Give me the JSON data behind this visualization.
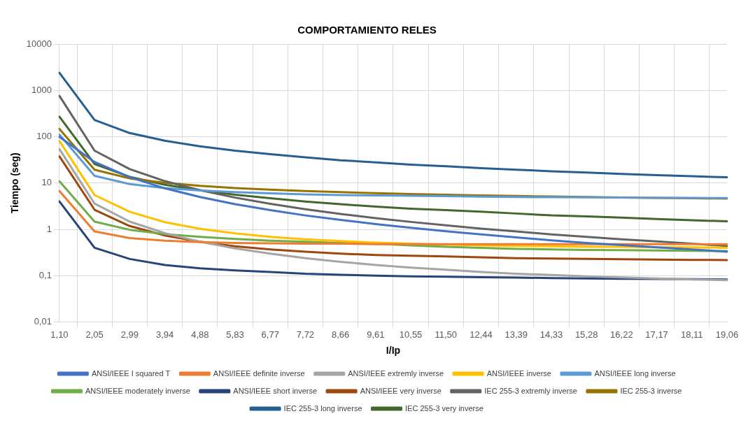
{
  "chart_data": {
    "type": "line",
    "title": "COMPORTAMIENTO RELES",
    "xlabel": "I/Ip",
    "ylabel": "Tiempo (seg)",
    "categories": [
      "1,10",
      "2,05",
      "2,99",
      "3,94",
      "4,88",
      "5,83",
      "6,77",
      "7,72",
      "8,66",
      "9,61",
      "10,55",
      "11,50",
      "12,44",
      "13,39",
      "14,33",
      "15,28",
      "16,22",
      "17,17",
      "18,11",
      "19,06"
    ],
    "log": "y",
    "ylim": [
      0.01,
      10000
    ],
    "yticks": [
      {
        "value": 0.01,
        "label": "0,01"
      },
      {
        "value": 0.1,
        "label": "0,1"
      },
      1,
      10,
      100,
      1000,
      10000
    ],
    "grid": true,
    "legend": "bottom",
    "marker": "none",
    "line_style": "solid",
    "series": [
      {
        "name": "ANSI/IEEE I squared T",
        "color": "#4472c4",
        "values": [
          99,
          28.5,
          13.4,
          7.7,
          5.0,
          3.5,
          2.6,
          2.0,
          1.6,
          1.3,
          1.08,
          0.91,
          0.78,
          0.67,
          0.58,
          0.51,
          0.46,
          0.41,
          0.37,
          0.33
        ]
      },
      {
        "name": "ANSI/IEEE definite inverse",
        "color": "#ed7d31",
        "values": [
          6.7,
          0.9,
          0.65,
          0.57,
          0.53,
          0.51,
          0.5,
          0.49,
          0.49,
          0.48,
          0.48,
          0.48,
          0.48,
          0.48,
          0.48,
          0.48,
          0.48,
          0.48,
          0.48,
          0.48
        ]
      },
      {
        "name": "ANSI/IEEE extremly inverse",
        "color": "#a5a5a5",
        "values": [
          54,
          3.6,
          1.47,
          0.83,
          0.54,
          0.39,
          0.3,
          0.24,
          0.2,
          0.17,
          0.15,
          0.135,
          0.12,
          0.11,
          0.104,
          0.097,
          0.092,
          0.087,
          0.083,
          0.08
        ]
      },
      {
        "name": "ANSI/IEEE inverse",
        "color": "#ffc000",
        "values": [
          81,
          5.5,
          2.4,
          1.43,
          1.03,
          0.82,
          0.69,
          0.61,
          0.56,
          0.52,
          0.49,
          0.47,
          0.45,
          0.44,
          0.43,
          0.42,
          0.42,
          0.41,
          0.41,
          0.4
        ]
      },
      {
        "name": "ANSI/IEEE long inverse",
        "color": "#5b9bd5",
        "values": [
          111,
          14.3,
          9.5,
          7.8,
          6.9,
          6.4,
          6.0,
          5.7,
          5.5,
          5.4,
          5.3,
          5.2,
          5.1,
          5.0,
          4.95,
          4.9,
          4.85,
          4.8,
          4.78,
          4.74
        ]
      },
      {
        "name": "ANSI/IEEE moderately inverse",
        "color": "#70ad47",
        "values": [
          10.9,
          1.47,
          0.98,
          0.79,
          0.69,
          0.62,
          0.57,
          0.54,
          0.51,
          0.49,
          0.45,
          0.42,
          0.4,
          0.38,
          0.37,
          0.36,
          0.355,
          0.35,
          0.345,
          0.34
        ]
      },
      {
        "name": "ANSI/IEEE short inverse",
        "color": "#264478",
        "values": [
          4.0,
          0.4,
          0.23,
          0.17,
          0.145,
          0.13,
          0.12,
          0.11,
          0.105,
          0.1,
          0.097,
          0.095,
          0.093,
          0.091,
          0.089,
          0.087,
          0.086,
          0.085,
          0.084,
          0.083
        ]
      },
      {
        "name": "ANSI/IEEE very inverse",
        "color": "#9e480e",
        "values": [
          37.6,
          2.65,
          1.18,
          0.74,
          0.54,
          0.43,
          0.37,
          0.33,
          0.3,
          0.28,
          0.27,
          0.26,
          0.25,
          0.24,
          0.235,
          0.23,
          0.226,
          0.223,
          0.22,
          0.218
        ]
      },
      {
        "name": "IEC 255-3 extremly inverse",
        "color": "#636363",
        "values": [
          760,
          50,
          20,
          11,
          7.0,
          4.85,
          3.57,
          2.73,
          2.16,
          1.75,
          1.45,
          1.22,
          1.04,
          0.9,
          0.78,
          0.69,
          0.61,
          0.55,
          0.49,
          0.44
        ]
      },
      {
        "name": "IEC 255-3 inverse",
        "color": "#997300",
        "values": [
          147,
          19.4,
          12.6,
          10.1,
          8.7,
          7.8,
          7.2,
          6.7,
          6.35,
          6.05,
          5.8,
          5.6,
          5.4,
          5.26,
          5.12,
          5.0,
          4.89,
          4.79,
          4.69,
          4.61
        ]
      },
      {
        "name": "IEC 255-3 long inverse",
        "color": "#255e91",
        "values": [
          2400,
          230,
          120,
          82,
          62,
          50,
          42,
          36,
          31,
          28,
          25,
          23,
          21,
          19.4,
          18,
          16.8,
          15.8,
          14.8,
          14,
          13.3
        ]
      },
      {
        "name": "IEC 255-3 very inverse",
        "color": "#43682b",
        "values": [
          270,
          25.7,
          13.6,
          9.2,
          7.0,
          5.6,
          4.7,
          4.0,
          3.5,
          3.1,
          2.8,
          2.6,
          2.4,
          2.2,
          2.0,
          1.9,
          1.8,
          1.67,
          1.58,
          1.49
        ]
      }
    ]
  }
}
